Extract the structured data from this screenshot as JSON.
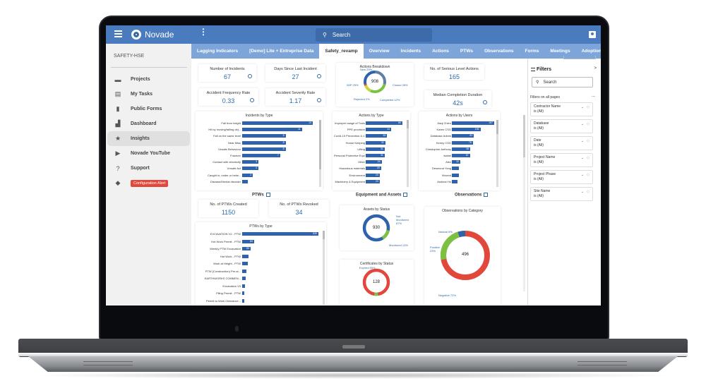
{
  "app": {
    "brand": "Novade",
    "search_placeholder": "Search",
    "project": "SAFETY-HSE"
  },
  "sidebar": {
    "items": [
      {
        "label": "Projects",
        "icon": "briefcase-icon"
      },
      {
        "label": "My Tasks",
        "icon": "clipboard-icon"
      },
      {
        "label": "Public Forms",
        "icon": "document-icon"
      },
      {
        "label": "Dashboard",
        "icon": "chart-icon"
      },
      {
        "label": "Insights",
        "icon": "star-icon",
        "active": true
      },
      {
        "label": "Novade YouTube",
        "icon": "play-icon"
      },
      {
        "label": "Support",
        "icon": "help-icon"
      },
      {
        "label": "Configuration Alert",
        "icon": "alert-diamond-icon",
        "badge": true
      }
    ]
  },
  "tabs": [
    {
      "label": "Lagging Indicators"
    },
    {
      "label": "[Demo] Lite + Entreprise Data"
    },
    {
      "label": "Safety_revamp",
      "active": true
    },
    {
      "label": "Overview"
    },
    {
      "label": "Incidents"
    },
    {
      "label": "Actions"
    },
    {
      "label": "PTWs"
    },
    {
      "label": "Observations"
    },
    {
      "label": "Forms"
    },
    {
      "label": "Meetings"
    },
    {
      "label": "Adoption"
    }
  ],
  "kpis": {
    "incidents": {
      "title": "Number of Incidents",
      "value": "67"
    },
    "days_since": {
      "title": "Days Since Last Incident",
      "value": "27"
    },
    "afr": {
      "title": "Accident Frequency Rate",
      "value": "0.33"
    },
    "asr": {
      "title": "Accident Severity Rate",
      "value": "1.17"
    },
    "serious_actions": {
      "title": "No. of Serious Level Actions",
      "value": "165"
    },
    "median_duration": {
      "title": "Median Completion Duration",
      "value": "42s"
    },
    "ptws_created": {
      "title": "No. of PTWs Created",
      "value": "1150"
    },
    "ptws_revoked": {
      "title": "No. of PTWs Revoked",
      "value": "34"
    }
  },
  "sections": {
    "ptws": "PTWs",
    "equipment": "Equipment and Assets",
    "observations": "Observations"
  },
  "filters": {
    "title": "Filters",
    "search_placeholder": "Search",
    "all_pages_label": "Filters on all pages",
    "more": "...",
    "items": [
      {
        "name": "Contractor Name",
        "value": "is (All)"
      },
      {
        "name": "Database",
        "value": "is (All)"
      },
      {
        "name": "Date",
        "value": "is (All)"
      },
      {
        "name": "Project Name",
        "value": "is (All)"
      },
      {
        "name": "Project Phase",
        "value": "is (All)"
      },
      {
        "name": "Site Name",
        "value": "is (All)"
      }
    ]
  },
  "chart_data": [
    {
      "type": "bar",
      "title": "Incidents by Type",
      "orientation": "horizontal",
      "categories": [
        "Fall from height",
        "Hit by moving/falling obj...",
        "Fall on the same level",
        "Near Miss",
        "Unsafe Behaviour",
        "Fracture",
        "Contact with electricity",
        "Unsafe Act",
        "Caught in, under or betw...",
        "Disease/Mental disorder"
      ],
      "values": [
        13,
        11,
        8,
        8,
        8,
        7,
        3,
        3,
        2,
        1
      ]
    },
    {
      "type": "bar",
      "title": "Actions by Type",
      "orientation": "horizontal",
      "categories": [
        "Improper usage of Tools",
        "PPE provision",
        "Covid-19 Prevention & Con...",
        "House Keeping",
        "Lifting",
        "Personal Protective Equipm...",
        "Other",
        "Hazardous materials",
        "Environment",
        "Machinery & Equipment"
      ],
      "values": [
        60,
        42,
        35,
        32,
        31,
        31,
        26,
        25,
        23,
        23
      ]
    },
    {
      "type": "bar",
      "title": "Actions by Users",
      "orientation": "horizontal",
      "categories": [
        "Jiaqi Chien",
        "Karen CSG",
        "Database Admin",
        "Kenny CSG",
        "Christopher Anthony",
        "Isabel",
        "Alex",
        "Desmond Yong",
        "Vincent",
        "Andrew Ho"
      ],
      "values": [
        157,
        106,
        82,
        78,
        69,
        67,
        32,
        26,
        26,
        20
      ]
    },
    {
      "type": "bar",
      "title": "PTWs by Type",
      "orientation": "horizontal",
      "categories": [
        "EXCAVATION V2 - PTW",
        "Hot Work Permit - PTW",
        "Weekly PTW Excavation",
        "Hot Work - PTW",
        "Work at Height - PTW",
        "PTW (Construction) Pre-st...",
        "EARTHWORKS COMMEN...",
        "Excavation V3",
        "Piling Permit - PTW",
        "Permit to Work Clearance..."
      ],
      "values": [
        530,
        83,
        59,
        45,
        40,
        30,
        25,
        18,
        16,
        14
      ]
    },
    {
      "type": "pie",
      "title": "Actions Breakdown",
      "center": "908",
      "categories": [
        "New",
        "Closed",
        "Completed",
        "Rejected",
        "WIP"
      ],
      "values": [
        29,
        28,
        12,
        2,
        29
      ],
      "labels": [
        "New 29%",
        "Closed 28%",
        "Completed 12%",
        "Rejected 2%",
        "WIP 29%"
      ],
      "colors": [
        "#5f7fa6",
        "#7cc242",
        "#c8d43a",
        "#e2473b",
        "#2f62ac"
      ]
    },
    {
      "type": "pie",
      "title": "Assets by Status",
      "center": "930",
      "categories": [
        "Not Monitored",
        "Monitored"
      ],
      "values": [
        87,
        13
      ],
      "labels": [
        "Not Monitored 87%",
        "Monitored 13%"
      ],
      "colors": [
        "#2f62ac",
        "#7cc242"
      ]
    },
    {
      "type": "pie",
      "title": "Certificates by Status",
      "center": "128",
      "categories": [
        "Expired",
        "Other"
      ],
      "values": [
        95,
        5
      ],
      "labels": [
        "Expired 95%"
      ],
      "colors": [
        "#e2473b",
        "#7cc242"
      ]
    },
    {
      "type": "pie",
      "title": "Observations by Category",
      "center": "496",
      "categories": [
        "Neutral",
        "Positive",
        "Negative"
      ],
      "values": [
        5,
        23,
        72
      ],
      "labels": [
        "Neutral 5%",
        "Positive 23%",
        "Negative 72%"
      ],
      "colors": [
        "#2f62ac",
        "#7cc242",
        "#e2473b"
      ]
    }
  ]
}
